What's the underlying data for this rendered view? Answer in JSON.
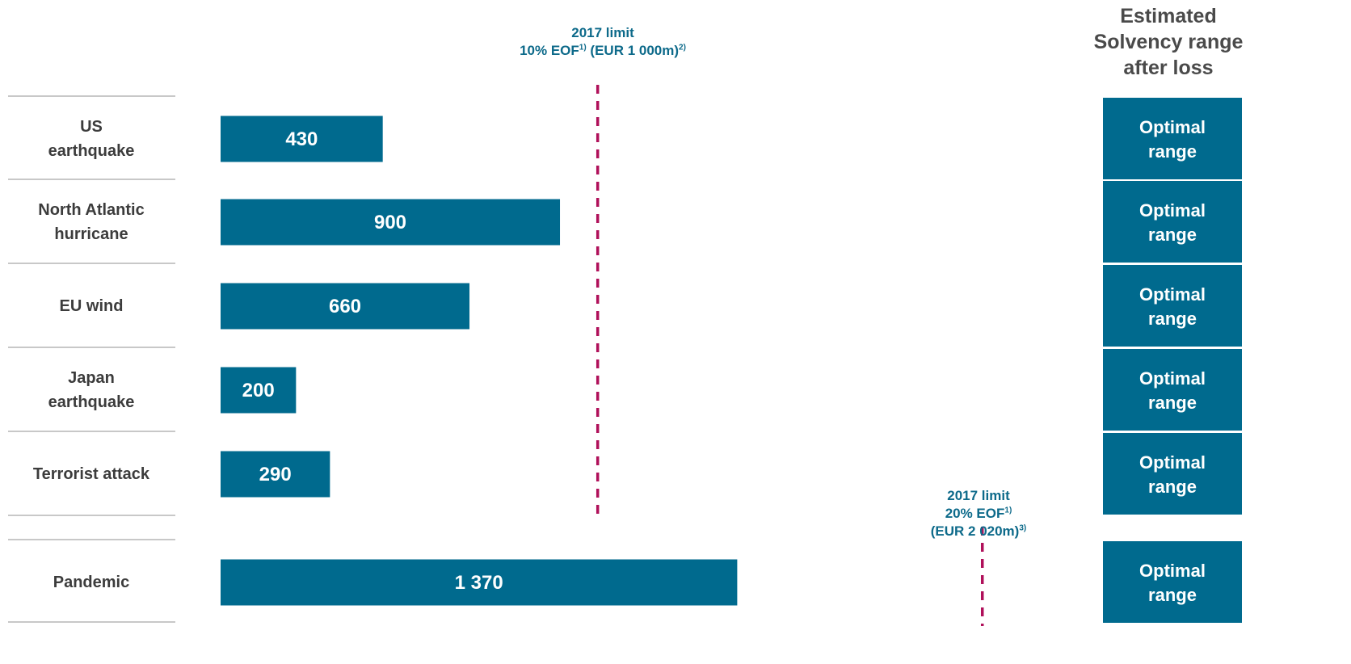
{
  "chart_data": {
    "type": "bar",
    "orientation": "horizontal",
    "categories": [
      "US\nearthquake",
      "North Atlantic\nhurricane",
      "EU wind",
      "Japan\nearthquake",
      "Terrorist attack",
      "Pandemic"
    ],
    "values": [
      430,
      900,
      660,
      200,
      290,
      1370
    ],
    "data_labels": [
      "430",
      "900",
      "660",
      "200",
      "290",
      "1 370"
    ],
    "bar_color": "#006a8e",
    "limit_color": "#b0105a",
    "limits": [
      {
        "value": 1000,
        "applies_to": "first five categories",
        "lines": [
          {
            "text": "2017 limit",
            "sup": ""
          },
          {
            "text": "10% EOF",
            "sup": "1)",
            "text2": " (EUR 1 000m)",
            "sup2": "2)"
          }
        ]
      },
      {
        "value": 2020,
        "applies_to": "Pandemic",
        "lines": [
          {
            "text": "2017 limit",
            "sup": ""
          },
          {
            "text": "20% EOF",
            "sup": "1)"
          },
          {
            "text": "(EUR 2 020m)",
            "sup": "3)"
          }
        ]
      }
    ],
    "solvency_header": "Estimated\nSolvency range\nafter loss",
    "solvency_ranges": [
      "Optimal\nrange",
      "Optimal\nrange",
      "Optimal\nrange",
      "Optimal\nrange",
      "Optimal\nrange",
      "Optimal\nrange"
    ]
  }
}
